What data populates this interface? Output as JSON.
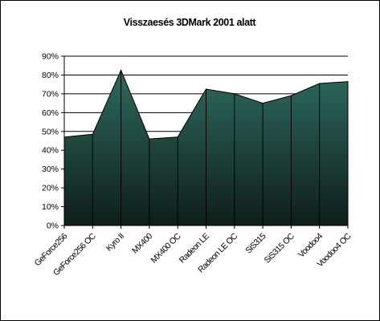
{
  "chart_data": {
    "type": "area",
    "title": "Visszaesés 3DMark 2001 alatt",
    "xlabel": "",
    "ylabel": "",
    "categories": [
      "GeForce256",
      "GeForce256 OC",
      "Kyro II",
      "MX400",
      "MX400 OC",
      "Radeon LE",
      "Radeon LE OC",
      "SiS315",
      "SiS315 OC",
      "Voodoo4",
      "Voodoo4 OC"
    ],
    "values": [
      0.47,
      0.485,
      0.825,
      0.46,
      0.47,
      0.725,
      0.7,
      0.65,
      0.69,
      0.755,
      0.765
    ],
    "ylim": [
      0,
      0.9
    ],
    "yticks": [
      "0%",
      "10%",
      "20%",
      "30%",
      "40%",
      "50%",
      "60%",
      "70%",
      "80%",
      "90%"
    ],
    "grid": true,
    "legend": "none",
    "colors": {
      "fill_top": "#2d6b5e",
      "fill_bottom": "#0f1d1a",
      "outline": "#000000",
      "plot_background": "#ffffff",
      "gridline": "#000000"
    }
  }
}
